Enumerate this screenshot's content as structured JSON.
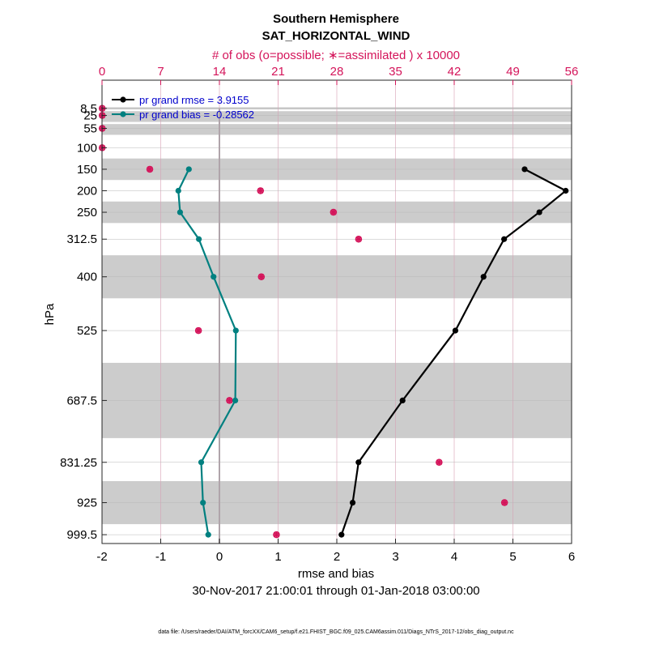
{
  "chart_data": {
    "type": "line",
    "title": "Southern Hemisphere",
    "subtitle": "SAT_HORIZONTAL_WIND",
    "top_axis_label": "# of obs (o=possible; ∗=assimilated ) x 10000",
    "xlabel": "rmse and bias",
    "ylabel": "hPa",
    "date_range": "30-Nov-2017 21:00:01 through 01-Jan-2018 03:00:00",
    "xlim": [
      -2,
      6
    ],
    "x_ticks": [
      "-2",
      "-1",
      "0",
      "1",
      "2",
      "3",
      "4",
      "5",
      "6"
    ],
    "top_xlim": [
      0,
      56
    ],
    "top_ticks": [
      "0",
      "7",
      "14",
      "21",
      "28",
      "35",
      "42",
      "49",
      "56"
    ],
    "levels": [
      8.5,
      25,
      55,
      100,
      150,
      200,
      250,
      312.5,
      400,
      525,
      687.5,
      831.25,
      925,
      999.5
    ],
    "level_labels": [
      "8.5",
      "25",
      "55",
      "100",
      "150",
      "200",
      "250",
      "312.5",
      "400",
      "525",
      "687.5",
      "831.25",
      "925",
      "999.5"
    ],
    "series": [
      {
        "name": "pr grand rmse = 3.9155",
        "color": "#000000",
        "levels": [
          150,
          200,
          250,
          312.5,
          400,
          525,
          687.5,
          831.25,
          925,
          999.5
        ],
        "values": [
          5.2,
          5.9,
          5.45,
          4.85,
          4.5,
          4.02,
          3.12,
          2.37,
          2.27,
          2.08
        ]
      },
      {
        "name": "pr grand bias = -0.28562",
        "color": "#008080",
        "levels": [
          150,
          200,
          250,
          312.5,
          400,
          525,
          687.5,
          831.25,
          925,
          999.5
        ],
        "values": [
          -0.52,
          -0.7,
          -0.67,
          -0.35,
          -0.1,
          0.28,
          0.27,
          -0.31,
          -0.28,
          -0.19
        ]
      }
    ],
    "obs_count": {
      "color": "#d4145a",
      "levels": [
        8.5,
        25,
        55,
        100,
        150,
        200,
        250,
        312.5,
        400,
        525,
        687.5,
        831.25,
        925,
        999.5
      ],
      "possible": [
        0.02,
        0.02,
        0.02,
        0.02,
        5.7,
        18.9,
        27.6,
        30.6,
        19.0,
        11.5,
        15.2,
        40.2,
        48.0,
        20.8
      ],
      "assimilated": [
        0.02,
        0.02,
        0.02,
        0.02,
        5.7,
        18.9,
        27.6,
        30.6,
        19.0,
        11.5,
        15.2,
        40.2,
        48.0,
        20.8
      ]
    },
    "grid": true,
    "legend_position": "top-left",
    "shaded_bands_hpa": [
      [
        6,
        11
      ],
      [
        15,
        40
      ],
      [
        45,
        70
      ],
      [
        125,
        175
      ],
      [
        225,
        275
      ],
      [
        350,
        450
      ],
      [
        600,
        775
      ],
      [
        875,
        975
      ]
    ],
    "zero_line": 0
  },
  "footer": "data file: /Users/raeder/DAI/ATM_forcXX/CAM6_setup/f.e21.FHIST_BGC.f09_025.CAM6assim.011/Diags_NTrS_2017-12/obs_diag_output.nc"
}
